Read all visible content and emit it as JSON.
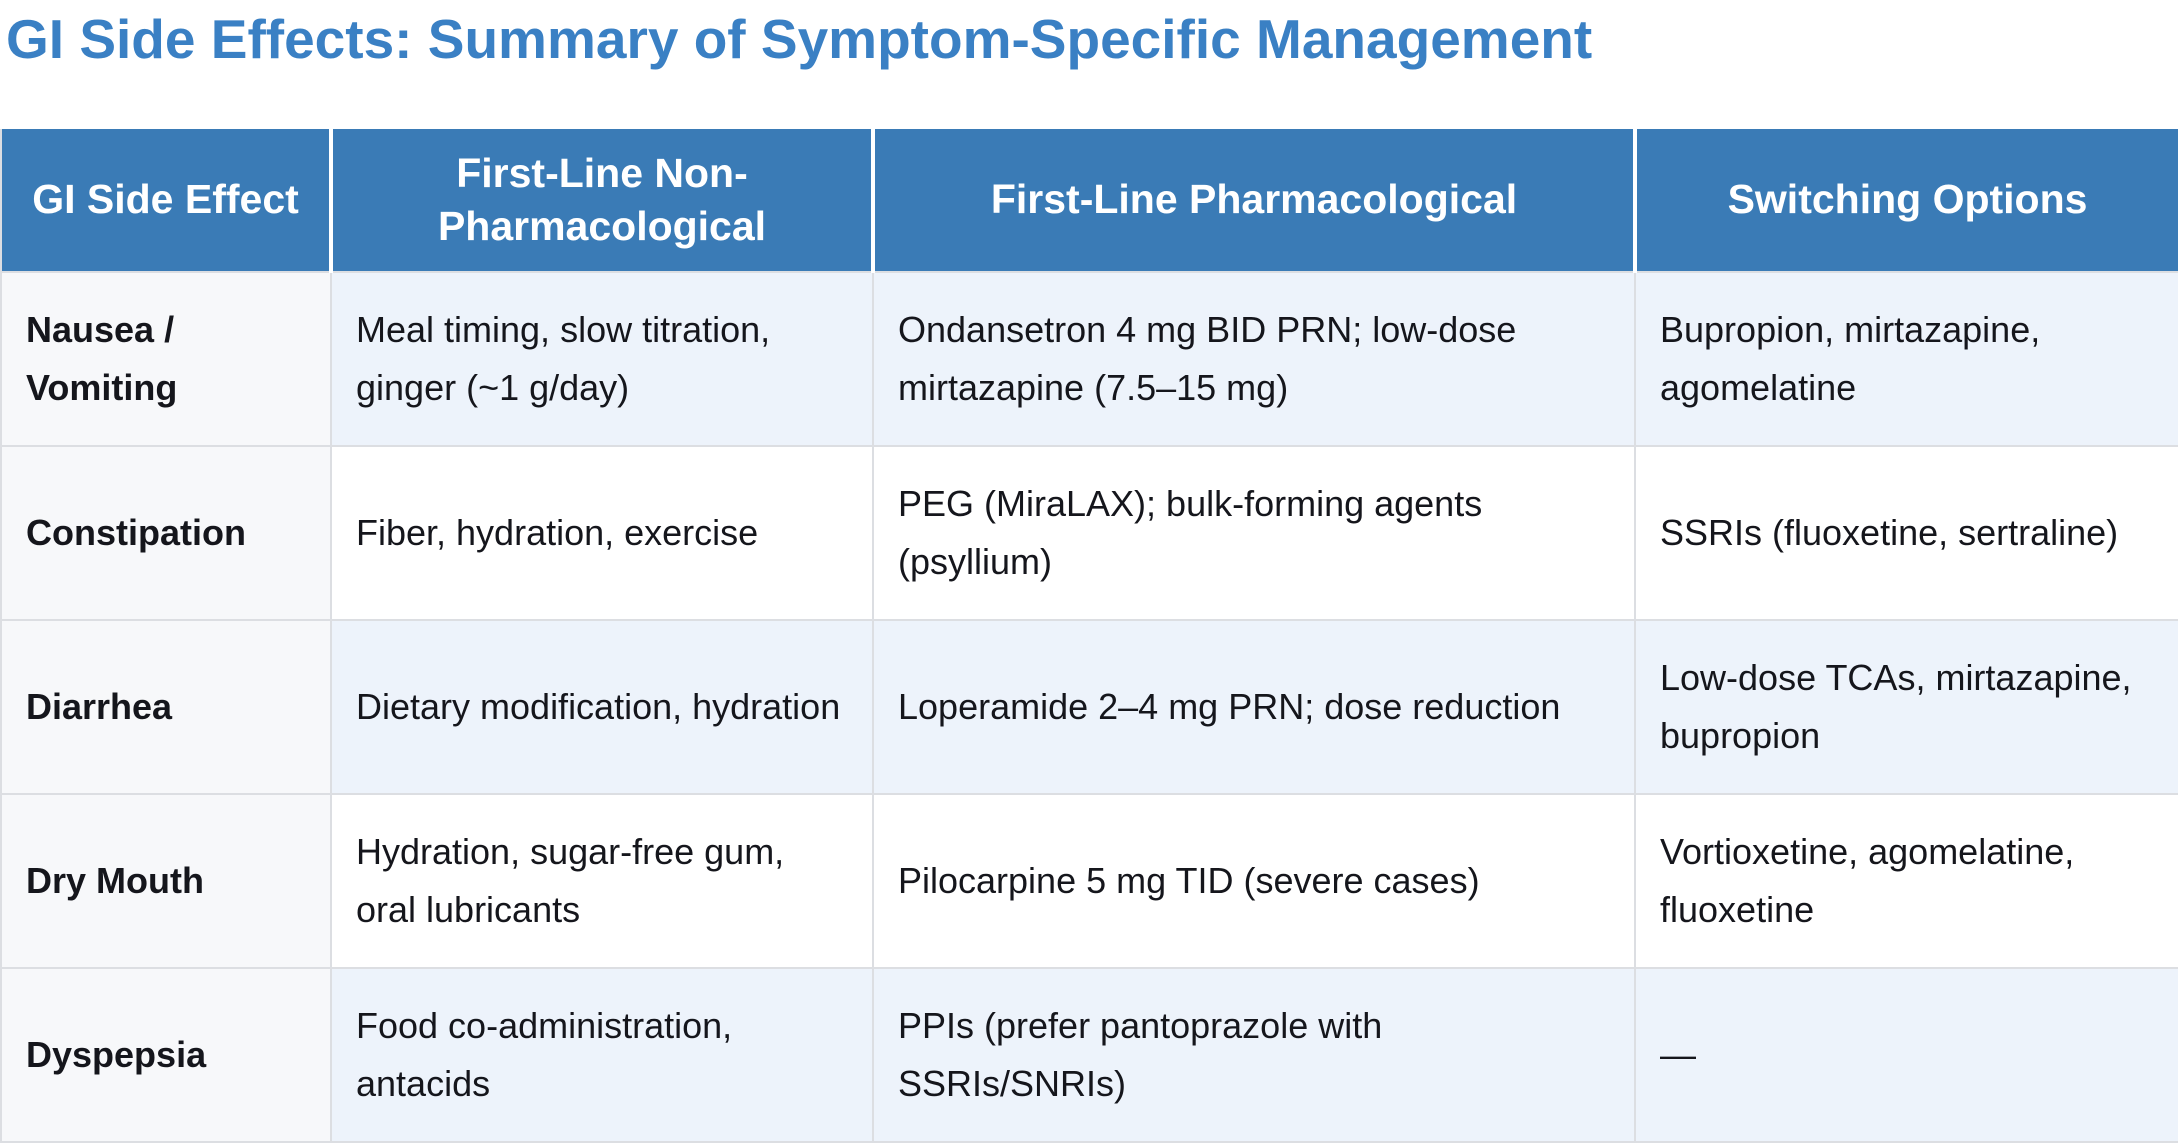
{
  "title": "GI Side Effects: Summary of Symptom-Specific Management",
  "table": {
    "columns": [
      "GI Side Effect",
      "First-Line Non-Pharmacological",
      "First-Line Pharmacological",
      "Switching Options"
    ],
    "rows": [
      {
        "effect": "Nausea / Vomiting",
        "non_pharmacological": "Meal timing, slow titration, ginger (~1 g/day)",
        "pharmacological": "Ondansetron 4 mg BID PRN; low-dose mirtazapine (7.5–15 mg)",
        "switching": "Bupropion, mirtazapine, agomelatine"
      },
      {
        "effect": "Constipation",
        "non_pharmacological": "Fiber, hydration, exercise",
        "pharmacological": "PEG (MiraLAX); bulk-forming agents (psyllium)",
        "switching": "SSRIs (fluoxetine, sertraline)"
      },
      {
        "effect": "Diarrhea",
        "non_pharmacological": "Dietary modification, hydration",
        "pharmacological": "Loperamide 2–4 mg PRN; dose reduction",
        "switching": "Low-dose TCAs, mirtazapine, bupropion"
      },
      {
        "effect": "Dry Mouth",
        "non_pharmacological": "Hydration, sugar-free gum, oral lubricants",
        "pharmacological": "Pilocarpine 5 mg TID (severe cases)",
        "switching": "Vortioxetine, agomelatine, fluoxetine"
      },
      {
        "effect": "Dyspepsia",
        "non_pharmacological": "Food co-administration, antacids",
        "pharmacological": "PPIs (prefer pantoprazole with SSRIs/SNRIs)",
        "switching": "—"
      }
    ]
  },
  "colors": {
    "title_text": "#3a80c4",
    "header_bg": "#3a7bb6",
    "header_text": "#ffffff",
    "body_text": "#15161c",
    "row_alt_bg": "#edf3fb",
    "row_bg": "#ffffff",
    "first_col_bg": "#f7f8fa",
    "grid_line": "#dcdee2"
  }
}
